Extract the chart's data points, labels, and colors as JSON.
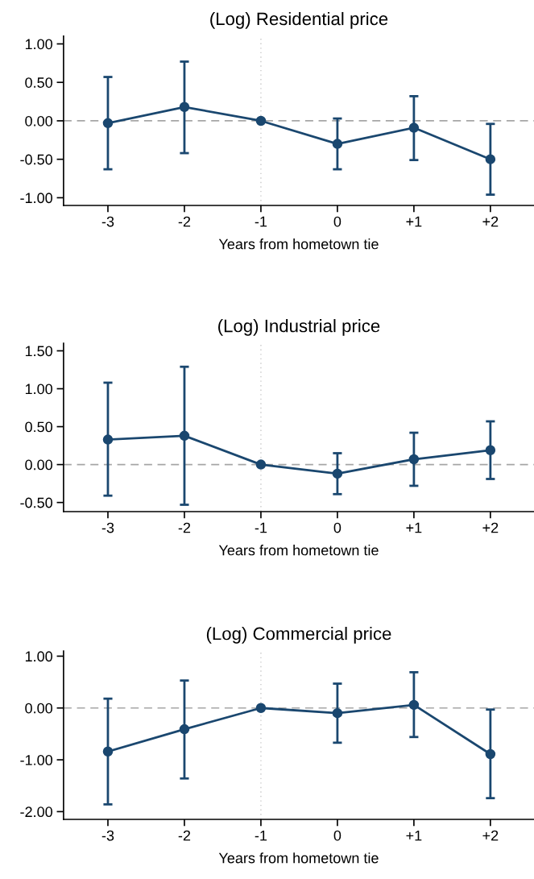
{
  "chart_data": [
    {
      "type": "line",
      "title": "(Log) Residential price",
      "xlabel": "Years from hometown tie",
      "categories": [
        "-3",
        "-2",
        "-1",
        "0",
        "+1",
        "+2"
      ],
      "series": [
        {
          "color": "#1a476f",
          "values": [
            -0.03,
            0.18,
            0,
            -0.3,
            -0.09,
            -0.5
          ],
          "errors": [
            [
              -0.63,
              0.57
            ],
            [
              -0.42,
              0.77
            ],
            null,
            [
              -0.63,
              0.03
            ],
            [
              -0.51,
              0.32
            ],
            [
              -0.96,
              -0.04
            ]
          ]
        }
      ],
      "ylim": [
        -1.1,
        1.1
      ],
      "yticks": [
        {
          "value": -1,
          "label": "-1.00"
        },
        {
          "value": -0.5,
          "label": "-0.50"
        },
        {
          "value": 0,
          "label": "0.00"
        },
        {
          "value": 0.5,
          "label": "0.50"
        },
        {
          "value": 1,
          "label": "1.00"
        }
      ],
      "ref_lines": [
        {
          "axis": "y",
          "value": 0,
          "color": "#a6a6a6",
          "line_style": "dashed"
        },
        {
          "axis": "x",
          "value": "-1",
          "color": "#c8c8c8",
          "line_style": "dotted"
        }
      ],
      "marker": "circle",
      "line_style": "solid",
      "grid": false
    },
    {
      "type": "line",
      "title": "(Log) Industrial price",
      "xlabel": "Years from hometown tie",
      "categories": [
        "-3",
        "-2",
        "-1",
        "0",
        "+1",
        "+2"
      ],
      "series": [
        {
          "color": "#1a476f",
          "values": [
            0.33,
            0.38,
            0,
            -0.12,
            0.07,
            0.19
          ],
          "errors": [
            [
              -0.41,
              1.08
            ],
            [
              -0.53,
              1.29
            ],
            null,
            [
              -0.39,
              0.15
            ],
            [
              -0.28,
              0.42
            ],
            [
              -0.19,
              0.57
            ]
          ]
        }
      ],
      "ylim": [
        -0.62,
        1.6
      ],
      "yticks": [
        {
          "value": -0.5,
          "label": "-0.50"
        },
        {
          "value": 0,
          "label": "0.00"
        },
        {
          "value": 0.5,
          "label": "0.50"
        },
        {
          "value": 1,
          "label": "1.00"
        },
        {
          "value": 1.5,
          "label": "1.50"
        }
      ],
      "ref_lines": [
        {
          "axis": "y",
          "value": 0,
          "color": "#a6a6a6",
          "line_style": "dashed"
        },
        {
          "axis": "x",
          "value": "-1",
          "color": "#c8c8c8",
          "line_style": "dotted"
        }
      ],
      "marker": "circle",
      "line_style": "solid",
      "grid": false
    },
    {
      "type": "line",
      "title": "(Log) Commercial price",
      "xlabel": "Years from hometown tie",
      "categories": [
        "-3",
        "-2",
        "-1",
        "0",
        "+1",
        "+2"
      ],
      "series": [
        {
          "color": "#1a476f",
          "values": [
            -0.84,
            -0.41,
            0,
            -0.1,
            0.06,
            -0.89
          ],
          "errors": [
            [
              -1.86,
              0.18
            ],
            [
              -1.36,
              0.53
            ],
            null,
            [
              -0.67,
              0.47
            ],
            [
              -0.56,
              0.69
            ],
            [
              -1.74,
              -0.03
            ]
          ]
        }
      ],
      "ylim": [
        -2.15,
        1.1
      ],
      "yticks": [
        {
          "value": -2,
          "label": "-2.00"
        },
        {
          "value": -1,
          "label": "-1.00"
        },
        {
          "value": 0,
          "label": "0.00"
        },
        {
          "value": 1,
          "label": "1.00"
        }
      ],
      "ref_lines": [
        {
          "axis": "y",
          "value": 0,
          "color": "#a6a6a6",
          "line_style": "dashed"
        },
        {
          "axis": "x",
          "value": "-1",
          "color": "#c8c8c8",
          "line_style": "dotted"
        }
      ],
      "marker": "circle",
      "line_style": "solid",
      "grid": false
    }
  ]
}
